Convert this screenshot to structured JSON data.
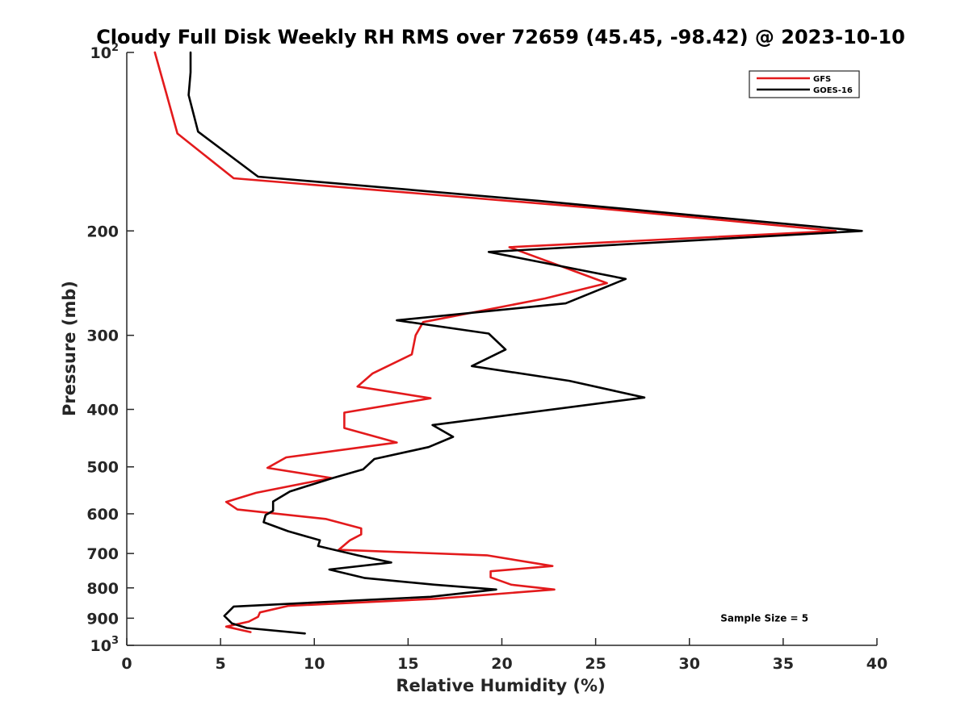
{
  "chart_data": {
    "type": "line",
    "title": "Cloudy Full Disk Weekly RH RMS over 72659 (45.45, -98.42) @ 2023-10-10",
    "xlabel": "Relative Humidity (%)",
    "ylabel": "Pressure (mb)",
    "xlim": [
      0,
      40
    ],
    "ylim": [
      100,
      1000
    ],
    "yscale": "log",
    "y_reversed": true,
    "grid": false,
    "legend_position": "top-right",
    "x_ticks": [
      {
        "value": 0,
        "label": "0"
      },
      {
        "value": 5,
        "label": "5"
      },
      {
        "value": 10,
        "label": "10"
      },
      {
        "value": 15,
        "label": "15"
      },
      {
        "value": 20,
        "label": "20"
      },
      {
        "value": 25,
        "label": "25"
      },
      {
        "value": 30,
        "label": "30"
      },
      {
        "value": 35,
        "label": "35"
      },
      {
        "value": 40,
        "label": "40"
      }
    ],
    "y_ticks": [
      {
        "value": 100,
        "base": "10",
        "exp": "2"
      },
      {
        "value": 200,
        "label": "200"
      },
      {
        "value": 300,
        "label": "300"
      },
      {
        "value": 400,
        "label": "400"
      },
      {
        "value": 500,
        "label": "500"
      },
      {
        "value": 600,
        "label": "600"
      },
      {
        "value": 700,
        "label": "700"
      },
      {
        "value": 800,
        "label": "800"
      },
      {
        "value": 900,
        "label": "900"
      },
      {
        "value": 1000,
        "base": "10",
        "exp": "3"
      }
    ],
    "series": [
      {
        "name": "GFS",
        "color": "#e31a1c",
        "points": [
          [
            1.5,
            100
          ],
          [
            2.1,
            117
          ],
          [
            2.7,
            137
          ],
          [
            5.7,
            163
          ],
          [
            25,
            183
          ],
          [
            37.8,
            200
          ],
          [
            20.4,
            213
          ],
          [
            25.6,
            245
          ],
          [
            22.3,
            260
          ],
          [
            15.8,
            285
          ],
          [
            15.4,
            300
          ],
          [
            15.2,
            323
          ],
          [
            13.1,
            348
          ],
          [
            12.3,
            366
          ],
          [
            16.2,
            383
          ],
          [
            11.6,
            405
          ],
          [
            11.6,
            430
          ],
          [
            14.4,
            455
          ],
          [
            8.5,
            482
          ],
          [
            7.5,
            502
          ],
          [
            10.9,
            522
          ],
          [
            6.9,
            553
          ],
          [
            5.3,
            573
          ],
          [
            5.9,
            590
          ],
          [
            10.6,
            612
          ],
          [
            12.5,
            635
          ],
          [
            12.5,
            650
          ],
          [
            11.9,
            665
          ],
          [
            11.3,
            690
          ],
          [
            19.2,
            705
          ],
          [
            22.7,
            735
          ],
          [
            19.4,
            750
          ],
          [
            19.4,
            768
          ],
          [
            20.5,
            790
          ],
          [
            22.8,
            805
          ],
          [
            16.4,
            835
          ],
          [
            8.6,
            858
          ],
          [
            7.1,
            880
          ],
          [
            7.0,
            895
          ],
          [
            6.5,
            912
          ],
          [
            5.3,
            930
          ],
          [
            6.6,
            950
          ]
        ]
      },
      {
        "name": "GOES-16",
        "color": "#000000",
        "points": [
          [
            3.4,
            100
          ],
          [
            3.4,
            108
          ],
          [
            3.3,
            118
          ],
          [
            3.8,
            136
          ],
          [
            7.0,
            162
          ],
          [
            22,
            178
          ],
          [
            39.2,
            200
          ],
          [
            19.3,
            217
          ],
          [
            26.6,
            241
          ],
          [
            23.4,
            265
          ],
          [
            14.4,
            283
          ],
          [
            19.3,
            298
          ],
          [
            20.2,
            317
          ],
          [
            18.4,
            338
          ],
          [
            23.6,
            358
          ],
          [
            27.6,
            382
          ],
          [
            16.3,
            425
          ],
          [
            17.4,
            445
          ],
          [
            16.1,
            463
          ],
          [
            13.2,
            485
          ],
          [
            12.6,
            505
          ],
          [
            11.0,
            522
          ],
          [
            8.7,
            550
          ],
          [
            7.8,
            572
          ],
          [
            7.8,
            593
          ],
          [
            7.4,
            603
          ],
          [
            7.3,
            620
          ],
          [
            8.6,
            642
          ],
          [
            10.3,
            665
          ],
          [
            10.2,
            680
          ],
          [
            12.3,
            705
          ],
          [
            14.1,
            725
          ],
          [
            10.8,
            745
          ],
          [
            12.7,
            770
          ],
          [
            16.4,
            790
          ],
          [
            19.7,
            805
          ],
          [
            16.2,
            828
          ],
          [
            5.7,
            860
          ],
          [
            5.2,
            892
          ],
          [
            5.6,
            918
          ],
          [
            6.4,
            935
          ],
          [
            9.5,
            955
          ]
        ]
      }
    ],
    "annotations": [
      {
        "text": "Sample Size = 5",
        "x": 34,
        "y": 900
      }
    ]
  }
}
